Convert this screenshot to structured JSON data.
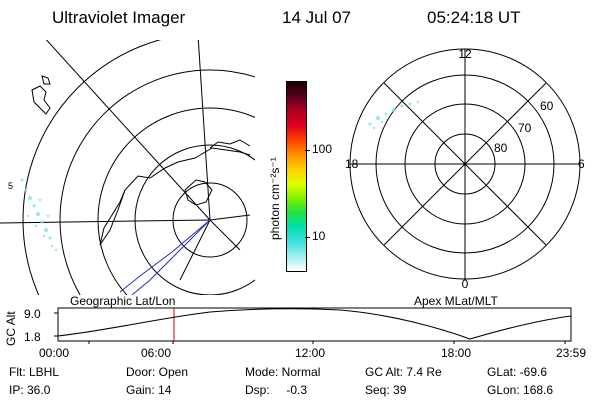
{
  "header": {
    "instrument": "Ultraviolet Imager",
    "date": "14 Jul 07",
    "time": "05:24:18 UT"
  },
  "geo_panel": {
    "label": "Geographic Lat/Lon",
    "edge_tick": "5"
  },
  "colorbar": {
    "unit_label": "photon cm⁻²s⁻¹",
    "ticks": [
      "100",
      "10"
    ],
    "colors": [
      "#1a0000",
      "#5a0020",
      "#b00020",
      "#e00020",
      "#ff4000",
      "#ff9000",
      "#ffd000",
      "#e0ff00",
      "#80f000",
      "#20e040",
      "#00e0b0",
      "#40e0e0",
      "#a0f0f0",
      "#ffffff"
    ]
  },
  "apex_panel": {
    "label": "Apex MLat/MLT",
    "mlt_labels": [
      "12",
      "18",
      "6",
      "0"
    ],
    "mlat_labels": [
      "60",
      "70",
      "80"
    ]
  },
  "altitude_plot": {
    "ylabel": "GC Alt",
    "y_ticks": [
      "9.0",
      "1.8"
    ],
    "x_ticks": [
      "00:00",
      "06:00",
      "12:00",
      "18:00",
      "23:59"
    ]
  },
  "status": {
    "filter": "Flt: LBHL",
    "ip": "IP: 36.0",
    "door": "Door: Open",
    "gain": "Gain: 14",
    "mode": "Mode: Normal",
    "dsp": "Dsp:     -0.3",
    "gc_alt": "GC Alt: 7.4 Re",
    "seq": "Seq: 39",
    "glat": "GLat: -69.6",
    "glon": "GLon: 168.6"
  }
}
